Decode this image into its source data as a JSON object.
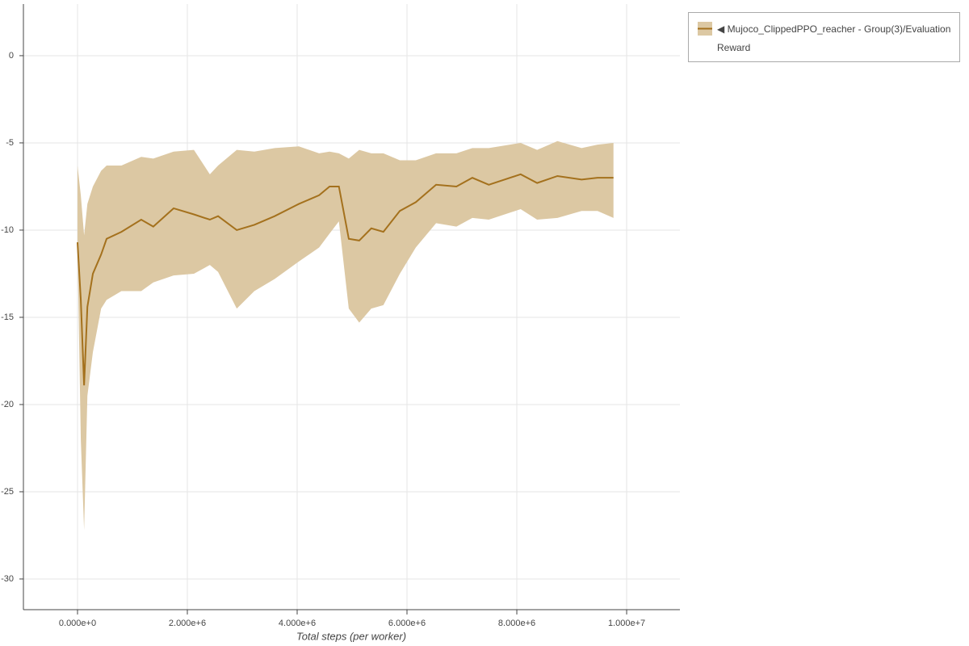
{
  "chart_data": {
    "type": "line",
    "x_label": "Total steps (per worker)",
    "x": [
      0,
      60000,
      120000,
      180000,
      280000,
      430000,
      530000,
      800000,
      1160000,
      1380000,
      1750000,
      2120000,
      2410000,
      2560000,
      2900000,
      3220000,
      3590000,
      4030000,
      4400000,
      4590000,
      4760000,
      4940000,
      5130000,
      5350000,
      5570000,
      5870000,
      6160000,
      6530000,
      6900000,
      7190000,
      7490000,
      8070000,
      8370000,
      8740000,
      9180000,
      9470000,
      9760000
    ],
    "series": [
      {
        "name": "◀ Mujoco_ClippedPPO_reacher - Group(3)/Evaluation Reward",
        "color": "#a4711d",
        "band_color": "#dcc8a3",
        "values": [
          -10.7,
          -14,
          -18.9,
          -14.4,
          -12.5,
          -11.4,
          -10.5,
          -10.1,
          -9.4,
          -9.8,
          -8.75,
          -9.1,
          -9.4,
          -9.2,
          -10.0,
          -9.7,
          -9.2,
          -8.5,
          -8.0,
          -7.5,
          -7.5,
          -10.5,
          -10.6,
          -9.9,
          -10.1,
          -8.9,
          -8.4,
          -7.4,
          -7.5,
          -7.0,
          -7.4,
          -6.8,
          -7.3,
          -6.9,
          -7.1,
          -7.0,
          -7.0
        ],
        "upper": [
          -6.3,
          -8,
          -10.3,
          -8.5,
          -7.5,
          -6.6,
          -6.3,
          -6.3,
          -5.8,
          -5.9,
          -5.5,
          -5.4,
          -6.8,
          -6.3,
          -5.4,
          -5.5,
          -5.3,
          -5.2,
          -5.6,
          -5.5,
          -5.6,
          -5.9,
          -5.4,
          -5.6,
          -5.6,
          -6.0,
          -6.0,
          -5.6,
          -5.6,
          -5.3,
          -5.3,
          -5.0,
          -5.4,
          -4.9,
          -5.3,
          -5.1,
          -5.0
        ],
        "lower": [
          -11,
          -22,
          -27.2,
          -19.5,
          -17,
          -14.5,
          -14,
          -13.5,
          -13.5,
          -13,
          -12.6,
          -12.5,
          -12,
          -12.4,
          -14.5,
          -13.5,
          -12.8,
          -11.8,
          -11.0,
          -10.2,
          -9.5,
          -14.5,
          -15.3,
          -14.5,
          -14.3,
          -12.5,
          -11.0,
          -9.6,
          -9.8,
          -9.3,
          -9.4,
          -8.8,
          -9.4,
          -9.3,
          -8.9,
          -8.9,
          -9.3
        ]
      }
    ],
    "xlim": [
      -985000,
      10970000
    ],
    "ylim": [
      -31.76,
      2.96
    ],
    "xticks": [
      {
        "value": 0,
        "label": "0.000e+0"
      },
      {
        "value": 2000000,
        "label": "2.000e+6"
      },
      {
        "value": 4000000,
        "label": "4.000e+6"
      },
      {
        "value": 6000000,
        "label": "6.000e+6"
      },
      {
        "value": 8000000,
        "label": "8.000e+6"
      },
      {
        "value": 10000000,
        "label": "1.000e+7"
      }
    ],
    "yticks": [
      0,
      -5,
      -10,
      -15,
      -20,
      -25,
      -30
    ],
    "grid": true,
    "legend": "right"
  }
}
